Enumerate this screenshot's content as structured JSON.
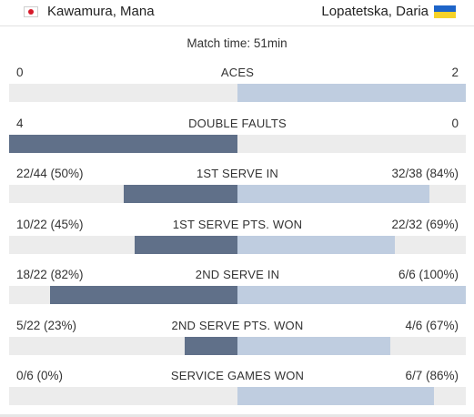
{
  "players": {
    "left": {
      "name": "Kawamura, Mana",
      "flag": "japan-flag-icon"
    },
    "right": {
      "name": "Lopatetska, Daria",
      "flag": "ukraine-flag-icon"
    }
  },
  "match_time": "Match time: 51min",
  "stats": [
    {
      "name": "ACES",
      "left": "0",
      "right": "2",
      "left_frac": 0.0,
      "right_frac": 1.0
    },
    {
      "name": "DOUBLE FAULTS",
      "left": "4",
      "right": "0",
      "left_frac": 1.0,
      "right_frac": 0.0
    },
    {
      "name": "1ST SERVE IN",
      "left": "22/44 (50%)",
      "right": "32/38 (84%)",
      "left_frac": 0.5,
      "right_frac": 0.84
    },
    {
      "name": "1ST SERVE PTS. WON",
      "left": "10/22 (45%)",
      "right": "22/32 (69%)",
      "left_frac": 0.45,
      "right_frac": 0.69
    },
    {
      "name": "2ND SERVE IN",
      "left": "18/22 (82%)",
      "right": "6/6 (100%)",
      "left_frac": 0.82,
      "right_frac": 1.0
    },
    {
      "name": "2ND SERVE PTS. WON",
      "left": "5/22 (23%)",
      "right": "4/6 (67%)",
      "left_frac": 0.23,
      "right_frac": 0.67
    },
    {
      "name": "SERVICE GAMES WON",
      "left": "0/6 (0%)",
      "right": "6/7 (86%)",
      "left_frac": 0.0,
      "right_frac": 0.86
    }
  ],
  "colors": {
    "left_fill": "#607089",
    "right_fill": "#bfcde0",
    "track": "#ececec"
  }
}
